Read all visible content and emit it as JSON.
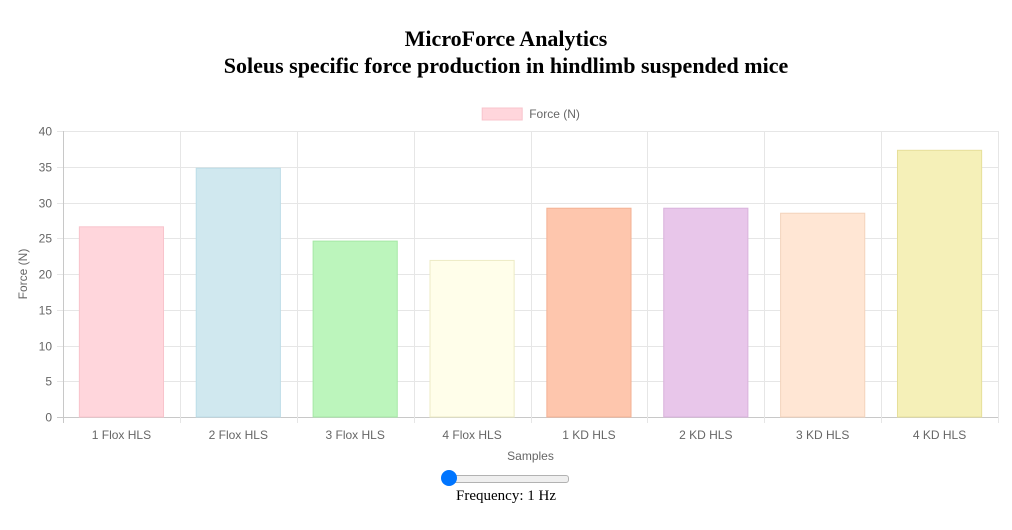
{
  "header": {
    "title": "MicroForce Analytics",
    "subtitle": "Soleus specific force production in hindlimb suspended mice"
  },
  "chart_data": {
    "type": "bar",
    "categories": [
      "1 Flox HLS",
      "2 Flox HLS",
      "3 Flox HLS",
      "4 Flox HLS",
      "1 KD HLS",
      "2 KD HLS",
      "3 KD HLS",
      "4 KD HLS"
    ],
    "series": [
      {
        "name": "Force (N)",
        "values": [
          26.6,
          34.8,
          24.6,
          21.9,
          29.2,
          29.2,
          28.5,
          37.3
        ]
      }
    ],
    "bar_colors": [
      "#ffd6dc",
      "#d0e8ef",
      "#bcf5bc",
      "#fffeea",
      "#fec6ad",
      "#e8c6ea",
      "#ffe6d4",
      "#f5f0b8"
    ],
    "bar_borders": [
      "#f8c4cc",
      "#bcdde7",
      "#a6e8a6",
      "#ecebc4",
      "#f3b194",
      "#d9b2dc",
      "#f3d3bc",
      "#e6df9a"
    ],
    "legend_color": "#ffd6dc",
    "legend_placement": "top-center",
    "xlabel": "Samples",
    "ylabel": "Force (N)",
    "ylim": [
      0,
      40
    ],
    "yticks": [
      0,
      5,
      10,
      15,
      20,
      25,
      30,
      35,
      40
    ],
    "grid": true
  },
  "controls": {
    "frequency_label": "Frequency: 1 Hz",
    "frequency_value": 1
  }
}
